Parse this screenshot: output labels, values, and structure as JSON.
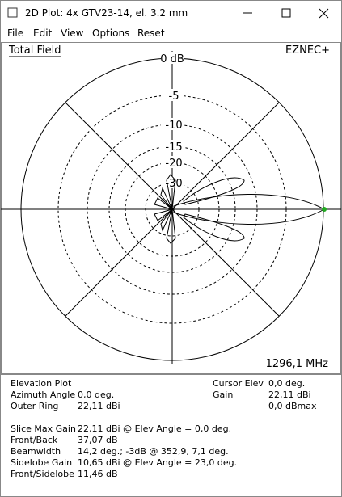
{
  "window": {
    "title": "2D Plot: 4x GTV23-14, el. 3.2 mm"
  },
  "menu": [
    "File",
    "Edit",
    "View",
    "Options",
    "Reset"
  ],
  "plot": {
    "label": "Total Field",
    "brand": "EZNEC+",
    "rings": [
      "0 dB",
      "-5",
      "-10",
      "-15",
      "-20",
      "-30"
    ],
    "frequency": "1296,1 MHz"
  },
  "info": {
    "plot_type": "Elevation Plot",
    "params": [
      {
        "label": "Azimuth Angle",
        "value": "0,0 deg."
      },
      {
        "label": "Outer Ring",
        "value": "22,11 dBi"
      }
    ],
    "cursor": [
      {
        "label": "Cursor Elev",
        "value": "0,0 deg."
      },
      {
        "label": "Gain",
        "value": "22,11 dBi"
      },
      {
        "value": "0,0 dBmax"
      }
    ],
    "results": [
      {
        "label": "Slice Max Gain",
        "value": "22,11 dBi @ Elev Angle = 0,0 deg."
      },
      {
        "label": "Front/Back",
        "value": "37,07 dB"
      },
      {
        "label": "Beamwidth",
        "value": "14,2 deg.; -3dB @ 352,9, 7,1 deg."
      },
      {
        "label": "Sidelobe Gain",
        "value": "10,65 dBi @ Elev Angle = 23,0 deg."
      },
      {
        "label": "Front/Sidelobe",
        "value": "11,46 dB"
      }
    ]
  }
}
